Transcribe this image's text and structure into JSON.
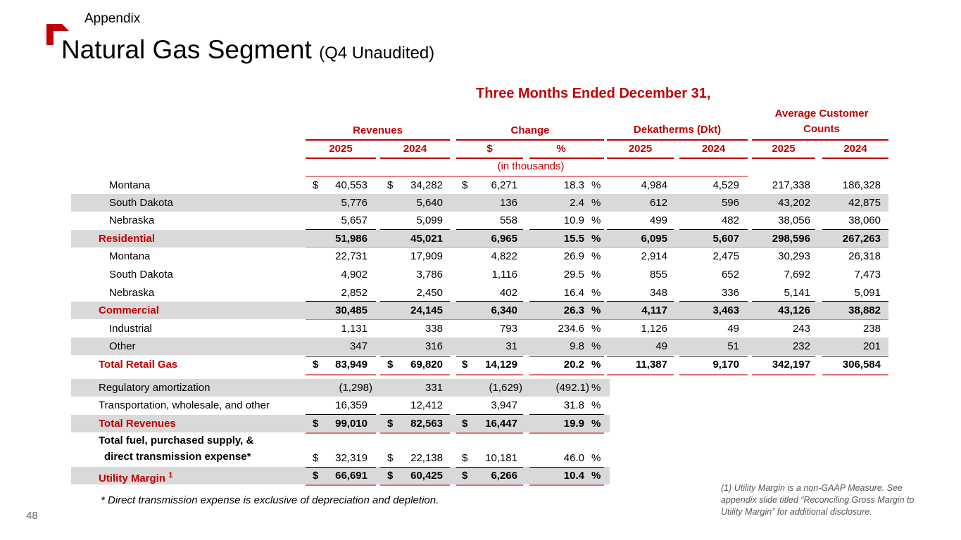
{
  "header": {
    "section": "Appendix",
    "title": "Natural Gas Segment",
    "subtitle": "(Q4 Unaudited)"
  },
  "table": {
    "period": "Three Months Ended December 31,",
    "groups": {
      "revenues": "Revenues",
      "change": "Change",
      "dekatherms": "Dekatherms (Dkt)",
      "customers": "Average Customer Counts"
    },
    "years": {
      "y1": "2025",
      "y2": "2024"
    },
    "change_cols": {
      "dollar": "$",
      "pct": "%"
    },
    "units_note": "(in thousands)",
    "currency": "$",
    "pct_sign": "%",
    "rows": [
      {
        "label": "Montana",
        "rev25": "40,553",
        "rev24": "34,282",
        "chg": "6,271",
        "pct": "18.3",
        "dkt25": "4,984",
        "dkt24": "4,529",
        "cust25": "217,338",
        "cust24": "186,328"
      },
      {
        "label": "South Dakota",
        "rev25": "5,776",
        "rev24": "5,640",
        "chg": "136",
        "pct": "2.4",
        "dkt25": "612",
        "dkt24": "596",
        "cust25": "43,202",
        "cust24": "42,875"
      },
      {
        "label": "Nebraska",
        "rev25": "5,657",
        "rev24": "5,099",
        "chg": "558",
        "pct": "10.9",
        "dkt25": "499",
        "dkt24": "482",
        "cust25": "38,056",
        "cust24": "38,060"
      },
      {
        "label": "Residential",
        "rev25": "51,986",
        "rev24": "45,021",
        "chg": "6,965",
        "pct": "15.5",
        "dkt25": "6,095",
        "dkt24": "5,607",
        "cust25": "298,596",
        "cust24": "267,263"
      },
      {
        "label": "Montana",
        "rev25": "22,731",
        "rev24": "17,909",
        "chg": "4,822",
        "pct": "26.9",
        "dkt25": "2,914",
        "dkt24": "2,475",
        "cust25": "30,293",
        "cust24": "26,318"
      },
      {
        "label": "South Dakota",
        "rev25": "4,902",
        "rev24": "3,786",
        "chg": "1,116",
        "pct": "29.5",
        "dkt25": "855",
        "dkt24": "652",
        "cust25": "7,692",
        "cust24": "7,473"
      },
      {
        "label": "Nebraska",
        "rev25": "2,852",
        "rev24": "2,450",
        "chg": "402",
        "pct": "16.4",
        "dkt25": "348",
        "dkt24": "336",
        "cust25": "5,141",
        "cust24": "5,091"
      },
      {
        "label": "Commercial",
        "rev25": "30,485",
        "rev24": "24,145",
        "chg": "6,340",
        "pct": "26.3",
        "dkt25": "4,117",
        "dkt24": "3,463",
        "cust25": "43,126",
        "cust24": "38,882"
      },
      {
        "label": "Industrial",
        "rev25": "1,131",
        "rev24": "338",
        "chg": "793",
        "pct": "234.6",
        "dkt25": "1,126",
        "dkt24": "49",
        "cust25": "243",
        "cust24": "238"
      },
      {
        "label": "Other",
        "rev25": "347",
        "rev24": "316",
        "chg": "31",
        "pct": "9.8",
        "dkt25": "49",
        "dkt24": "51",
        "cust25": "232",
        "cust24": "201"
      },
      {
        "label": "Total Retail Gas",
        "rev25": "83,949",
        "rev24": "69,820",
        "chg": "14,129",
        "pct": "20.2",
        "dkt25": "11,387",
        "dkt24": "9,170",
        "cust25": "342,197",
        "cust24": "306,584"
      },
      {
        "label": "Regulatory amortization",
        "rev25": "(1,298)",
        "rev24": "331",
        "chg": "(1,629)",
        "pct": "(492.1)"
      },
      {
        "label": "Transportation, wholesale, and other",
        "rev25": "16,359",
        "rev24": "12,412",
        "chg": "3,947",
        "pct": "31.8"
      },
      {
        "label": "Total Revenues",
        "rev25": "99,010",
        "rev24": "82,563",
        "chg": "16,447",
        "pct": "19.9"
      },
      {
        "label_line1": "Total fuel, purchased supply, &",
        "label_line2": "direct transmission expense*",
        "rev25": "32,319",
        "rev24": "22,138",
        "chg": "10,181",
        "pct": "46.0"
      },
      {
        "label": "Utility Margin",
        "footnote_ref": "1",
        "rev25": "66,691",
        "rev24": "60,425",
        "chg": "6,266",
        "pct": "10.4"
      }
    ]
  },
  "footnote": "* Direct transmission expense is exclusive of depreciation and depletion.",
  "note": "(1) Utility Margin is a non-GAAP Measure.  See appendix slide titled “Reconciling Gross Margin to Utility Margin” for additional disclosure.",
  "page_number": "48",
  "colors": {
    "accent": "#c00000",
    "band": "#d9d9d9"
  }
}
